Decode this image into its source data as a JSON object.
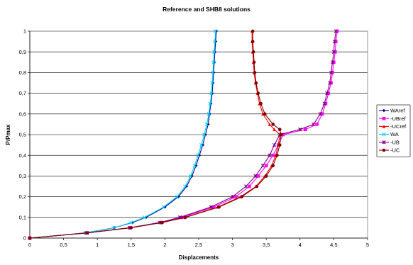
{
  "chart_data": {
    "type": "scatter",
    "title": "Reference and SHB8 solutions",
    "xlabel": "Displacements",
    "ylabel": "P/Pmax",
    "xlim": [
      0,
      5
    ],
    "ylim": [
      0,
      1
    ],
    "x_ticks": [
      "0",
      "0,5",
      "1",
      "1,5",
      "2",
      "2,5",
      "3",
      "3,5",
      "4",
      "4,5",
      "5"
    ],
    "y_ticks": [
      "0",
      "0,1",
      "0,2",
      "0,3",
      "0,4",
      "0,5",
      "0,6",
      "0,7",
      "0,8",
      "0,9",
      "1"
    ],
    "grid": "horizontal",
    "legend_position": "right",
    "series": [
      {
        "name": "WAref",
        "color": "#000080",
        "marker": "diamond",
        "points": [
          [
            0,
            0
          ],
          [
            0.82,
            0.025
          ],
          [
            1.25,
            0.05
          ],
          [
            1.52,
            0.075
          ],
          [
            1.72,
            0.1
          ],
          [
            2.0,
            0.15
          ],
          [
            2.2,
            0.2
          ],
          [
            2.32,
            0.25
          ],
          [
            2.4,
            0.3
          ],
          [
            2.46,
            0.35
          ],
          [
            2.51,
            0.4
          ],
          [
            2.56,
            0.45
          ],
          [
            2.6,
            0.5
          ],
          [
            2.64,
            0.55
          ],
          [
            2.66,
            0.6
          ],
          [
            2.68,
            0.65
          ],
          [
            2.7,
            0.7
          ],
          [
            2.71,
            0.75
          ],
          [
            2.72,
            0.8
          ],
          [
            2.73,
            0.85
          ],
          [
            2.74,
            0.9
          ],
          [
            2.75,
            0.95
          ],
          [
            2.76,
            1.0
          ]
        ]
      },
      {
        "name": "-UBref",
        "color": "#ff00ff",
        "marker": "square",
        "points": [
          [
            0,
            0
          ],
          [
            0.85,
            0.025
          ],
          [
            1.48,
            0.05
          ],
          [
            1.95,
            0.075
          ],
          [
            2.25,
            0.1
          ],
          [
            2.72,
            0.15
          ],
          [
            3.05,
            0.2
          ],
          [
            3.25,
            0.25
          ],
          [
            3.38,
            0.3
          ],
          [
            3.5,
            0.35
          ],
          [
            3.6,
            0.4
          ],
          [
            3.68,
            0.45
          ],
          [
            3.75,
            0.5
          ],
          [
            4.08,
            0.525
          ],
          [
            4.25,
            0.55
          ],
          [
            4.33,
            0.6
          ],
          [
            4.38,
            0.65
          ],
          [
            4.42,
            0.7
          ],
          [
            4.46,
            0.75
          ],
          [
            4.48,
            0.8
          ],
          [
            4.5,
            0.85
          ],
          [
            4.52,
            0.9
          ],
          [
            4.53,
            0.95
          ],
          [
            4.55,
            1.0
          ]
        ]
      },
      {
        "name": "-UCref",
        "color": "#ff0000",
        "marker": "triangle",
        "points": [
          [
            0,
            0
          ],
          [
            0.85,
            0.025
          ],
          [
            1.48,
            0.05
          ],
          [
            1.95,
            0.075
          ],
          [
            2.3,
            0.1
          ],
          [
            2.78,
            0.15
          ],
          [
            3.12,
            0.2
          ],
          [
            3.35,
            0.25
          ],
          [
            3.48,
            0.3
          ],
          [
            3.58,
            0.35
          ],
          [
            3.64,
            0.4
          ],
          [
            3.68,
            0.45
          ],
          [
            3.7,
            0.5
          ],
          [
            3.62,
            0.525
          ],
          [
            3.55,
            0.55
          ],
          [
            3.45,
            0.6
          ],
          [
            3.4,
            0.65
          ],
          [
            3.37,
            0.7
          ],
          [
            3.34,
            0.75
          ],
          [
            3.32,
            0.8
          ],
          [
            3.31,
            0.85
          ],
          [
            3.3,
            0.9
          ],
          [
            3.29,
            0.95
          ],
          [
            3.29,
            1.0
          ]
        ]
      },
      {
        "name": "WA",
        "color": "#00ccff",
        "marker": "x",
        "points": [
          [
            0,
            0
          ],
          [
            0.82,
            0.025
          ],
          [
            1.25,
            0.05
          ],
          [
            1.5,
            0.075
          ],
          [
            1.7,
            0.1
          ],
          [
            1.98,
            0.15
          ],
          [
            2.18,
            0.2
          ],
          [
            2.3,
            0.25
          ],
          [
            2.38,
            0.3
          ],
          [
            2.44,
            0.35
          ],
          [
            2.49,
            0.4
          ],
          [
            2.54,
            0.45
          ],
          [
            2.58,
            0.5
          ],
          [
            2.62,
            0.55
          ],
          [
            2.65,
            0.6
          ],
          [
            2.67,
            0.65
          ],
          [
            2.69,
            0.7
          ],
          [
            2.7,
            0.75
          ],
          [
            2.71,
            0.8
          ],
          [
            2.72,
            0.85
          ],
          [
            2.73,
            0.9
          ],
          [
            2.74,
            0.95
          ],
          [
            2.75,
            1.0
          ]
        ]
      },
      {
        "name": "-UB",
        "color": "#800080",
        "marker": "star",
        "points": [
          [
            0,
            0
          ],
          [
            0.85,
            0.025
          ],
          [
            1.48,
            0.05
          ],
          [
            1.92,
            0.075
          ],
          [
            2.22,
            0.1
          ],
          [
            2.68,
            0.15
          ],
          [
            3.0,
            0.2
          ],
          [
            3.2,
            0.25
          ],
          [
            3.34,
            0.3
          ],
          [
            3.45,
            0.35
          ],
          [
            3.55,
            0.4
          ],
          [
            3.62,
            0.45
          ],
          [
            3.7,
            0.5
          ],
          [
            4.0,
            0.525
          ],
          [
            4.2,
            0.55
          ],
          [
            4.3,
            0.6
          ],
          [
            4.36,
            0.65
          ],
          [
            4.4,
            0.7
          ],
          [
            4.44,
            0.75
          ],
          [
            4.46,
            0.8
          ],
          [
            4.48,
            0.85
          ],
          [
            4.5,
            0.9
          ],
          [
            4.51,
            0.95
          ],
          [
            4.53,
            1.0
          ]
        ]
      },
      {
        "name": "-UC",
        "color": "#800000",
        "marker": "circle",
        "points": [
          [
            0,
            0
          ],
          [
            0.85,
            0.025
          ],
          [
            1.5,
            0.05
          ],
          [
            1.96,
            0.075
          ],
          [
            2.3,
            0.1
          ],
          [
            2.8,
            0.15
          ],
          [
            3.14,
            0.2
          ],
          [
            3.36,
            0.25
          ],
          [
            3.5,
            0.3
          ],
          [
            3.6,
            0.35
          ],
          [
            3.66,
            0.4
          ],
          [
            3.7,
            0.45
          ],
          [
            3.72,
            0.5
          ],
          [
            3.7,
            0.525
          ],
          [
            3.6,
            0.55
          ],
          [
            3.48,
            0.6
          ],
          [
            3.42,
            0.65
          ],
          [
            3.38,
            0.7
          ],
          [
            3.35,
            0.75
          ],
          [
            3.33,
            0.8
          ],
          [
            3.32,
            0.85
          ],
          [
            3.31,
            0.9
          ],
          [
            3.3,
            0.95
          ],
          [
            3.3,
            1.0
          ]
        ]
      }
    ]
  }
}
